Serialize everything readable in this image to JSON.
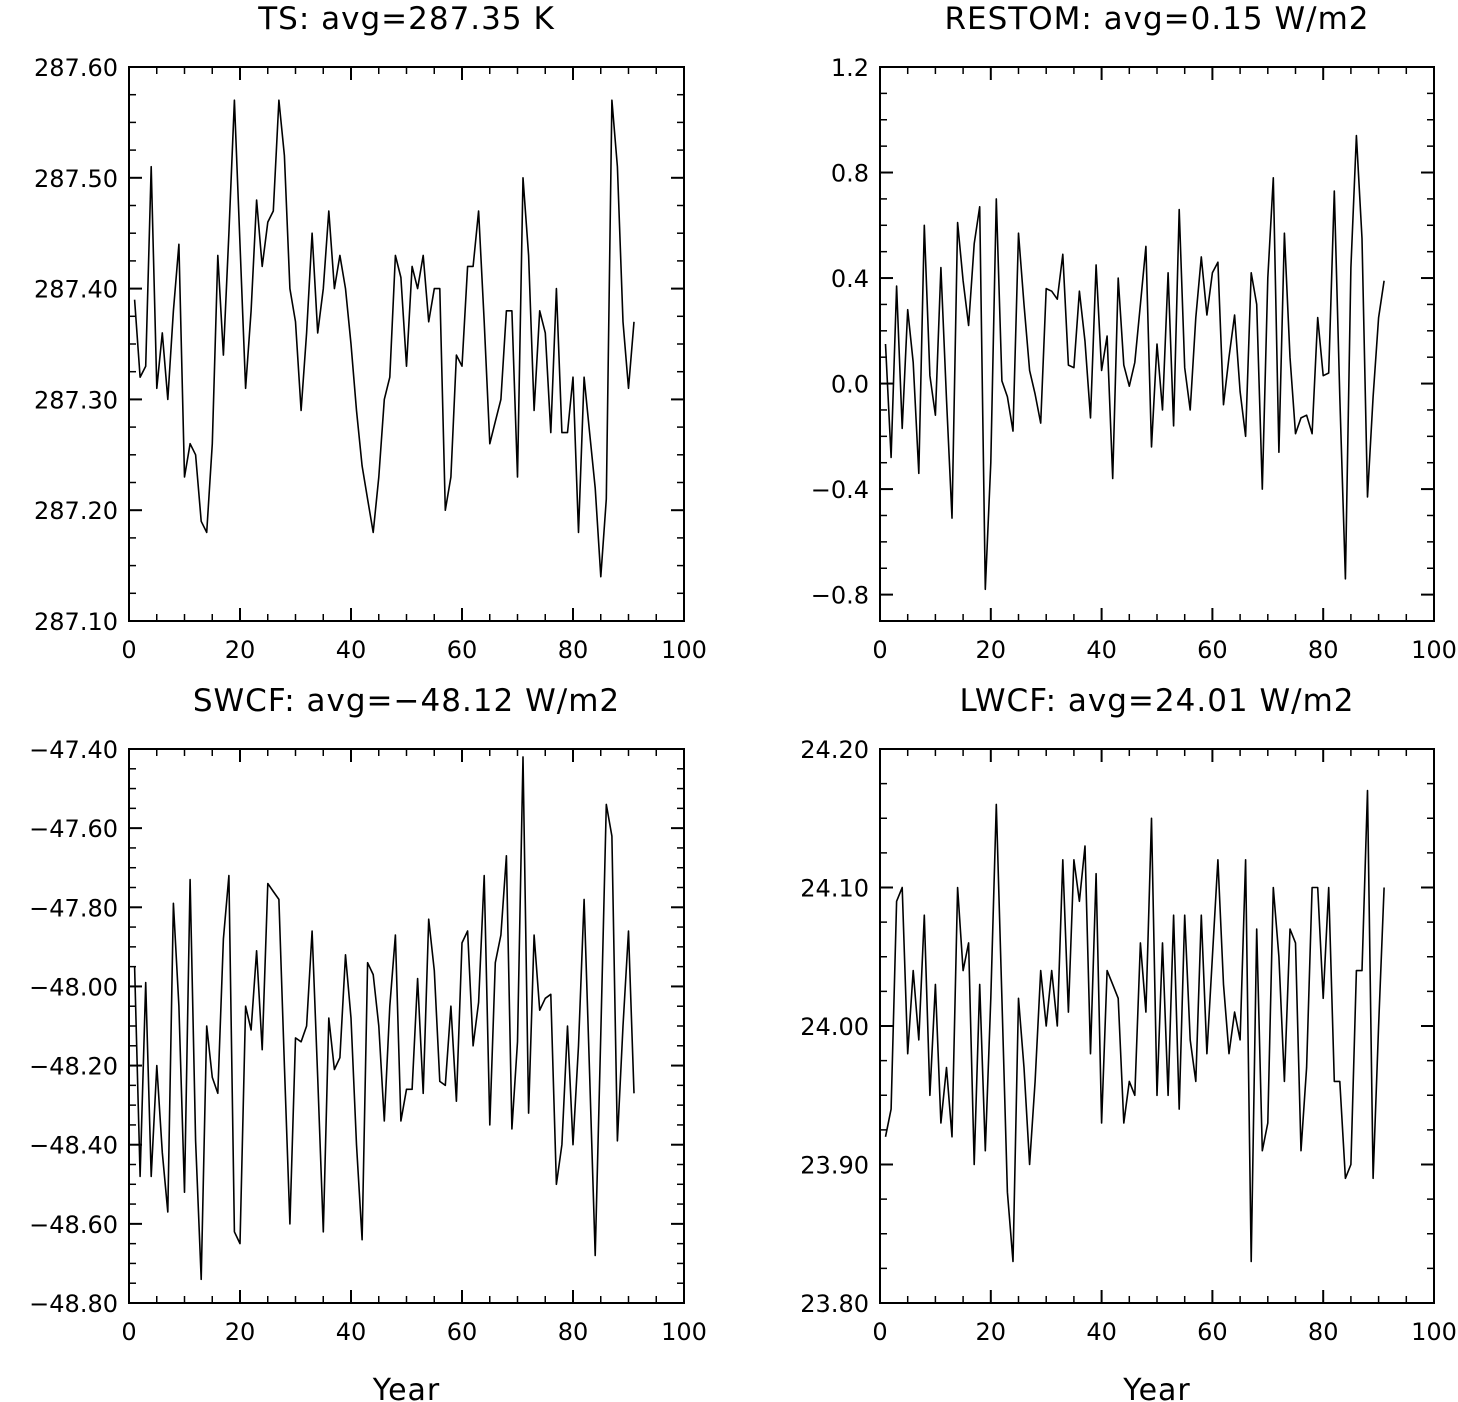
{
  "figure": {
    "x_axis_label": "Year"
  },
  "chart_data": [
    {
      "type": "line",
      "title": "TS: avg=287.35 K",
      "xlabel": "",
      "ylabel": "",
      "xlim": [
        0,
        100
      ],
      "ylim": [
        287.1,
        287.6
      ],
      "xticks": [
        0,
        20,
        40,
        60,
        80,
        100
      ],
      "yticks": [
        287.1,
        287.2,
        287.3,
        287.4,
        287.5,
        287.6
      ],
      "ytick_labels": [
        "287.10",
        "287.20",
        "287.30",
        "287.40",
        "287.50",
        "287.60"
      ],
      "series": [
        {
          "values": [
            287.39,
            287.32,
            287.33,
            287.51,
            287.31,
            287.36,
            287.3,
            287.38,
            287.44,
            287.23,
            287.26,
            287.25,
            287.19,
            287.18,
            287.26,
            287.43,
            287.34,
            287.45,
            287.57,
            287.44,
            287.31,
            287.38,
            287.48,
            287.42,
            287.46,
            287.47,
            287.57,
            287.52,
            287.4,
            287.37,
            287.29,
            287.36,
            287.45,
            287.36,
            287.4,
            287.47,
            287.4,
            287.43,
            287.4,
            287.35,
            287.29,
            287.24,
            287.21,
            287.18,
            287.23,
            287.3,
            287.32,
            287.43,
            287.41,
            287.33,
            287.42,
            287.4,
            287.43,
            287.37,
            287.4,
            287.4,
            287.2,
            287.23,
            287.34,
            287.33,
            287.42,
            287.42,
            287.47,
            287.37,
            287.26,
            287.28,
            287.3,
            287.38,
            287.38,
            287.23,
            287.5,
            287.43,
            287.29,
            287.38,
            287.36,
            287.27,
            287.4,
            287.27,
            287.27,
            287.32,
            287.18,
            287.32,
            287.27,
            287.22,
            287.14,
            287.21,
            287.57,
            287.51,
            287.37,
            287.31,
            287.37
          ]
        }
      ]
    },
    {
      "type": "line",
      "title": "RESTOM: avg=0.15 W/m2",
      "xlabel": "",
      "ylabel": "",
      "xlim": [
        0,
        100
      ],
      "ylim": [
        -0.9,
        1.2
      ],
      "xticks": [
        0,
        20,
        40,
        60,
        80,
        100
      ],
      "yticks": [
        -0.8,
        -0.4,
        0.0,
        0.4,
        0.8,
        1.2
      ],
      "ytick_labels": [
        "−0.8",
        "−0.4",
        "0.0",
        "0.4",
        "0.8",
        "1.2"
      ],
      "series": [
        {
          "values": [
            0.15,
            -0.28,
            0.37,
            -0.17,
            0.28,
            0.08,
            -0.34,
            0.6,
            0.03,
            -0.12,
            0.44,
            -0.06,
            -0.51,
            0.61,
            0.39,
            0.22,
            0.53,
            0.67,
            -0.78,
            -0.3,
            0.7,
            0.01,
            -0.05,
            -0.18,
            0.57,
            0.3,
            0.05,
            -0.04,
            -0.15,
            0.36,
            0.35,
            0.32,
            0.49,
            0.07,
            0.06,
            0.35,
            0.16,
            -0.13,
            0.45,
            0.05,
            0.18,
            -0.36,
            0.4,
            0.07,
            -0.01,
            0.08,
            0.3,
            0.52,
            -0.24,
            0.15,
            -0.1,
            0.42,
            -0.16,
            0.66,
            0.06,
            -0.1,
            0.25,
            0.48,
            0.26,
            0.42,
            0.46,
            -0.08,
            0.1,
            0.26,
            -0.03,
            -0.2,
            0.42,
            0.3,
            -0.4,
            0.4,
            0.78,
            -0.26,
            0.57,
            0.1,
            -0.19,
            -0.13,
            -0.12,
            -0.19,
            0.25,
            0.03,
            0.04,
            0.73,
            -0.05,
            -0.74,
            0.44,
            0.94,
            0.55,
            -0.43,
            -0.05,
            0.25,
            0.39
          ]
        }
      ]
    },
    {
      "type": "line",
      "title": "SWCF: avg=−48.12 W/m2",
      "xlabel": "Year",
      "ylabel": "",
      "xlim": [
        0,
        100
      ],
      "ylim": [
        -48.8,
        -47.4
      ],
      "xticks": [
        0,
        20,
        40,
        60,
        80,
        100
      ],
      "yticks": [
        -48.8,
        -48.6,
        -48.4,
        -48.2,
        -48.0,
        -47.8,
        -47.6,
        -47.4
      ],
      "ytick_labels": [
        "−48.80",
        "−48.60",
        "−48.40",
        "−48.20",
        "−48.00",
        "−47.80",
        "−47.60",
        "−47.40"
      ],
      "series": [
        {
          "values": [
            -47.95,
            -48.48,
            -47.99,
            -48.48,
            -48.2,
            -48.42,
            -48.57,
            -47.79,
            -48.05,
            -48.52,
            -47.73,
            -48.39,
            -48.74,
            -48.1,
            -48.23,
            -48.27,
            -47.88,
            -47.72,
            -48.62,
            -48.65,
            -48.05,
            -48.11,
            -47.91,
            -48.16,
            -47.74,
            -47.76,
            -47.78,
            -48.2,
            -48.6,
            -48.13,
            -48.14,
            -48.1,
            -47.86,
            -48.23,
            -48.62,
            -48.08,
            -48.21,
            -48.18,
            -47.92,
            -48.08,
            -48.4,
            -48.64,
            -47.94,
            -47.97,
            -48.1,
            -48.34,
            -48.05,
            -47.87,
            -48.34,
            -48.26,
            -48.26,
            -47.98,
            -48.27,
            -47.83,
            -47.96,
            -48.24,
            -48.25,
            -48.05,
            -48.29,
            -47.89,
            -47.86,
            -48.15,
            -48.04,
            -47.72,
            -48.35,
            -47.94,
            -47.87,
            -47.67,
            -48.36,
            -48.14,
            -47.42,
            -48.32,
            -47.87,
            -48.06,
            -48.03,
            -48.02,
            -48.5,
            -48.4,
            -48.1,
            -48.4,
            -48.15,
            -47.78,
            -48.22,
            -48.68,
            -48.12,
            -47.54,
            -47.62,
            -48.39,
            -48.1,
            -47.86,
            -48.27
          ]
        }
      ]
    },
    {
      "type": "line",
      "title": "LWCF: avg=24.01 W/m2",
      "xlabel": "Year",
      "ylabel": "",
      "xlim": [
        0,
        100
      ],
      "ylim": [
        23.8,
        24.2
      ],
      "xticks": [
        0,
        20,
        40,
        60,
        80,
        100
      ],
      "yticks": [
        23.8,
        23.9,
        24.0,
        24.1,
        24.2
      ],
      "ytick_labels": [
        "23.80",
        "23.90",
        "24.00",
        "24.10",
        "24.20"
      ],
      "series": [
        {
          "values": [
            23.92,
            23.94,
            24.09,
            24.1,
            23.98,
            24.04,
            23.99,
            24.08,
            23.95,
            24.03,
            23.93,
            23.97,
            23.92,
            24.1,
            24.04,
            24.06,
            23.9,
            24.03,
            23.91,
            24.02,
            24.16,
            24.02,
            23.88,
            23.83,
            24.02,
            23.97,
            23.9,
            23.96,
            24.04,
            24.0,
            24.04,
            24.0,
            24.12,
            24.01,
            24.12,
            24.09,
            24.13,
            23.98,
            24.11,
            23.93,
            24.04,
            24.03,
            24.02,
            23.93,
            23.96,
            23.95,
            24.06,
            24.01,
            24.15,
            23.95,
            24.06,
            23.95,
            24.08,
            23.94,
            24.08,
            23.99,
            23.96,
            24.08,
            23.98,
            24.05,
            24.12,
            24.03,
            23.98,
            24.01,
            23.99,
            24.12,
            23.83,
            24.07,
            23.91,
            23.93,
            24.1,
            24.05,
            23.96,
            24.07,
            24.06,
            23.91,
            23.97,
            24.1,
            24.1,
            24.02,
            24.1,
            23.96,
            23.96,
            23.89,
            23.9,
            24.04,
            24.04,
            24.17,
            23.89,
            24.0,
            24.1
          ]
        }
      ]
    }
  ]
}
